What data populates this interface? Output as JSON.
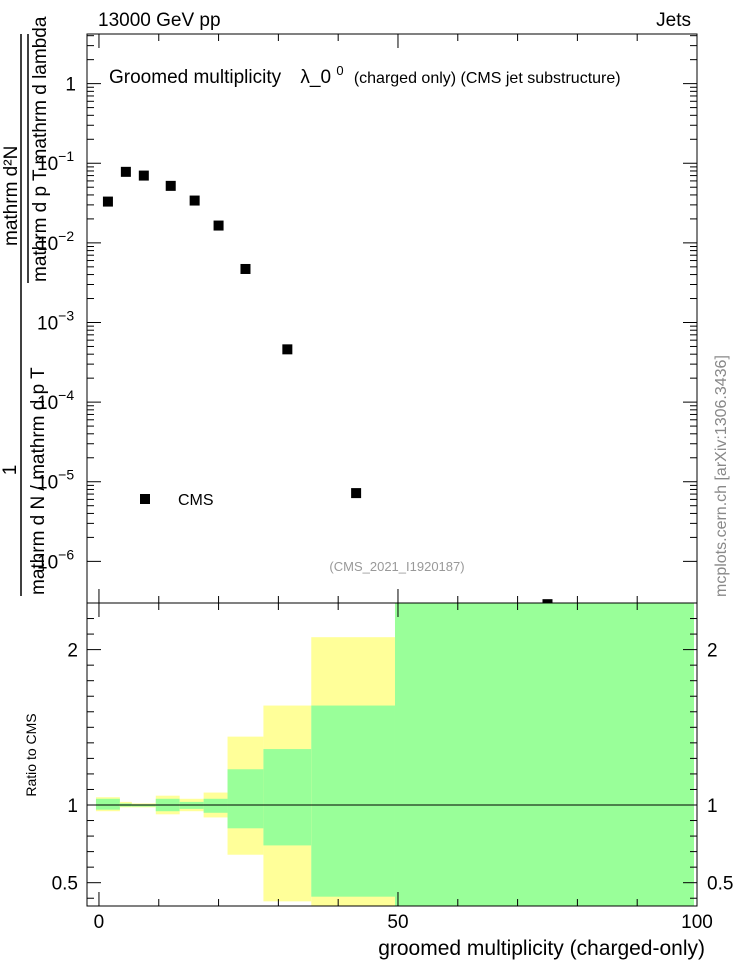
{
  "header": {
    "energy_label": "13000 GeV pp",
    "category_label": "Jets"
  },
  "side_label": "mcplots.cern.ch [arXiv:1306.3436]",
  "chart_data": [
    {
      "type": "scatter",
      "title": "Groomed multiplicity  λ_0⁰ (charged only) (CMS jet substructure)",
      "title_parts": {
        "main": "Groomed multiplicity",
        "symbol": "λ_0",
        "sup": "0",
        "small": "(charged only) (CMS jet substructure)"
      },
      "ylabel_parts": {
        "numerator": "1",
        "denominator": "mathrm d N / mathrm d p  T",
        "sub_T": "T",
        "fraction_numerator": "mathrm d²N",
        "fraction_denominator": "mathrm d p  T mathrm d lambda"
      },
      "yscale": "log",
      "ylim": [
        3e-07,
        4.2
      ],
      "xlim": [
        -2,
        100
      ],
      "y_ticks": [
        {
          "value": 1,
          "label": "1"
        },
        {
          "value": 0.1,
          "base": "10",
          "exp": "−1"
        },
        {
          "value": 0.01,
          "base": "10",
          "exp": "−2"
        },
        {
          "value": 0.001,
          "base": "10",
          "exp": "−3"
        },
        {
          "value": 0.0001,
          "base": "10",
          "exp": "−4"
        },
        {
          "value": 1e-05,
          "base": "10",
          "exp": "−5"
        },
        {
          "value": 1e-06,
          "base": "10",
          "exp": "−6"
        }
      ],
      "series": [
        {
          "name": "CMS",
          "marker": "square",
          "color": "#000000",
          "x": [
            1.5,
            4.5,
            7.5,
            12,
            16,
            20,
            24.5,
            31.5,
            43,
            75
          ],
          "y": [
            0.033,
            0.078,
            0.07,
            0.052,
            0.034,
            0.0165,
            0.0047,
            0.00046,
            7.2e-06,
            2.9e-07
          ]
        }
      ],
      "watermark": "(CMS_2021_I1920187)"
    },
    {
      "type": "ratio",
      "ylabel": "Ratio to CMS",
      "xlabel": "groomed multiplicity (charged-only)",
      "xlim": [
        -2,
        100
      ],
      "ylim": [
        0.35,
        2.3
      ],
      "y_ticks": [
        {
          "value": 0.5,
          "label": "0.5"
        },
        {
          "value": 1,
          "label": "1"
        },
        {
          "value": 2,
          "label": "2"
        }
      ],
      "x_ticks": [
        {
          "value": 0,
          "label": "0"
        },
        {
          "value": 50,
          "label": "50"
        },
        {
          "value": 100,
          "label": "100"
        }
      ],
      "reference_line": 1,
      "band_colors": {
        "outer": "#ffff99",
        "inner": "#99ff99"
      },
      "bins": [
        {
          "lo": -0.5,
          "hi": 3.5,
          "outer": [
            0.96,
            1.05
          ],
          "inner": [
            0.97,
            1.04
          ]
        },
        {
          "lo": 3.5,
          "hi": 5.5,
          "outer": [
            0.985,
            1.02
          ],
          "inner": [
            0.99,
            1.01
          ]
        },
        {
          "lo": 5.5,
          "hi": 9.5,
          "outer": [
            0.985,
            1.01
          ],
          "inner": [
            0.99,
            1.005
          ]
        },
        {
          "lo": 9.5,
          "hi": 13.5,
          "outer": [
            0.94,
            1.06
          ],
          "inner": [
            0.96,
            1.04
          ]
        },
        {
          "lo": 13.5,
          "hi": 17.5,
          "outer": [
            0.96,
            1.04
          ],
          "inner": [
            0.975,
            1.02
          ]
        },
        {
          "lo": 17.5,
          "hi": 21.5,
          "outer": [
            0.92,
            1.08
          ],
          "inner": [
            0.95,
            1.04
          ]
        },
        {
          "lo": 21.5,
          "hi": 27.5,
          "outer": [
            0.68,
            1.44
          ],
          "inner": [
            0.85,
            1.23
          ]
        },
        {
          "lo": 27.5,
          "hi": 35.5,
          "outer": [
            0.38,
            1.64
          ],
          "inner": [
            0.74,
            1.36
          ]
        },
        {
          "lo": 35.5,
          "hi": 49.5,
          "outer": [
            0.35,
            2.08
          ],
          "inner": [
            0.41,
            1.64
          ]
        },
        {
          "lo": 49.5,
          "hi": 99.5,
          "outer": [
            0.35,
            2.3
          ],
          "inner": [
            0.35,
            2.3
          ]
        }
      ]
    }
  ]
}
